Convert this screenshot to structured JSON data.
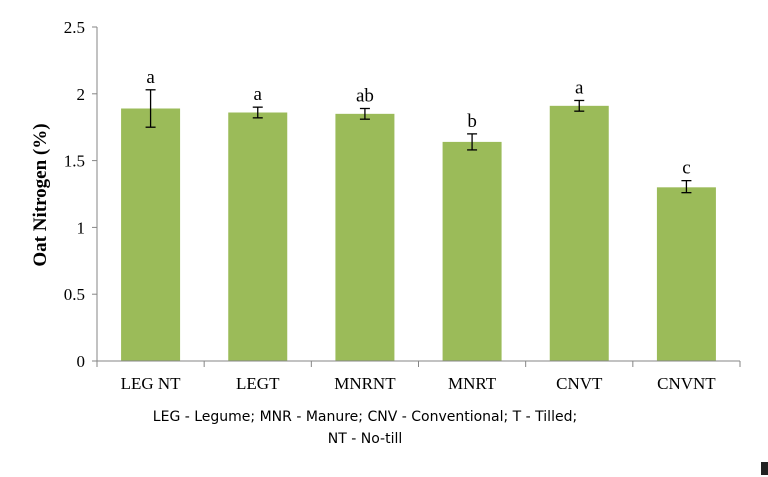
{
  "chart_data": {
    "type": "bar",
    "categories": [
      "LEG NT",
      "LEGT",
      "MNRNT",
      "MNRT",
      "CNVT",
      "CNVNT"
    ],
    "values": [
      1.89,
      1.86,
      1.85,
      1.64,
      1.91,
      1.3
    ],
    "error_low": [
      1.75,
      1.82,
      1.81,
      1.58,
      1.87,
      1.26
    ],
    "error_high": [
      2.03,
      1.9,
      1.89,
      1.7,
      1.95,
      1.35
    ],
    "significance_letters": [
      "a",
      "a",
      "ab",
      "b",
      "a",
      "c"
    ],
    "ylabel": "Oat Nitrogen (%)",
    "xlabel": "LEG - Legume; MNR - Manure; CNV - Conventional; T - Tilled; NT - No-till",
    "ylim": [
      0,
      2.5
    ],
    "yticks": [
      "0",
      "0.5",
      "1",
      "1.5",
      "2",
      "2.5"
    ],
    "grid": false,
    "legend": "none",
    "bar_color": "#9BBB59"
  }
}
